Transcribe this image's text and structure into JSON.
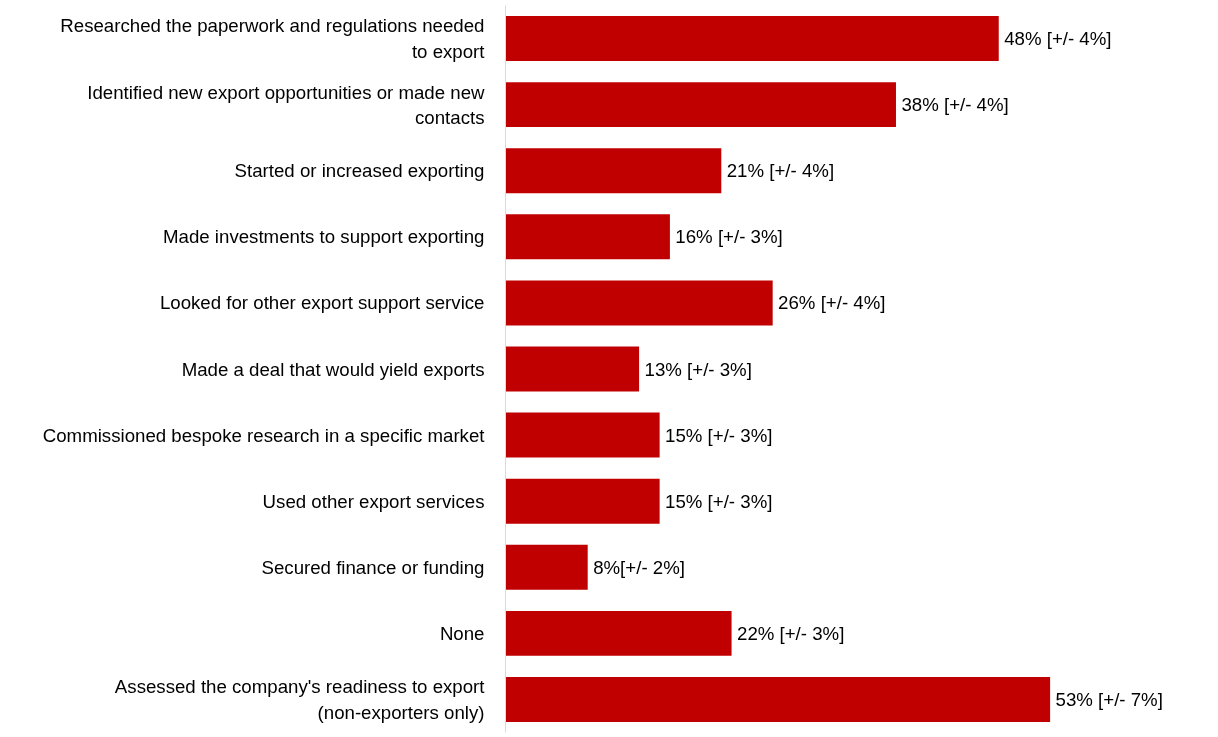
{
  "chart_data": {
    "type": "bar",
    "orientation": "horizontal",
    "categories": [
      "Researched the paperwork and regulations needed to export",
      "Identified new export opportunities or made new contacts",
      "Started or increased exporting",
      "Made investments to support exporting",
      "Looked for other export support service",
      "Made a deal that would yield exports",
      "Commissioned bespoke research in a specific market",
      "Used other export services",
      "Secured finance or funding",
      "None",
      "Assessed the company's readiness to export (non-exporters only)"
    ],
    "values": [
      48,
      38,
      21,
      16,
      26,
      13,
      15,
      15,
      8,
      22,
      53
    ],
    "value_labels": [
      "48%  [+/- 4%]",
      "38%    [+/- 4%]",
      "21%  [+/- 4%]",
      "16% [+/- 3%]",
      "26% [+/- 4%]",
      "13%  [+/- 3%]",
      "15%  [+/- 3%]",
      "15% [+/- 3%]",
      "8%[+/- 2%]",
      "22%  [+/- 3%]",
      "53%  [+/- 7%]"
    ],
    "color": "#c00000",
    "grid": false
  }
}
